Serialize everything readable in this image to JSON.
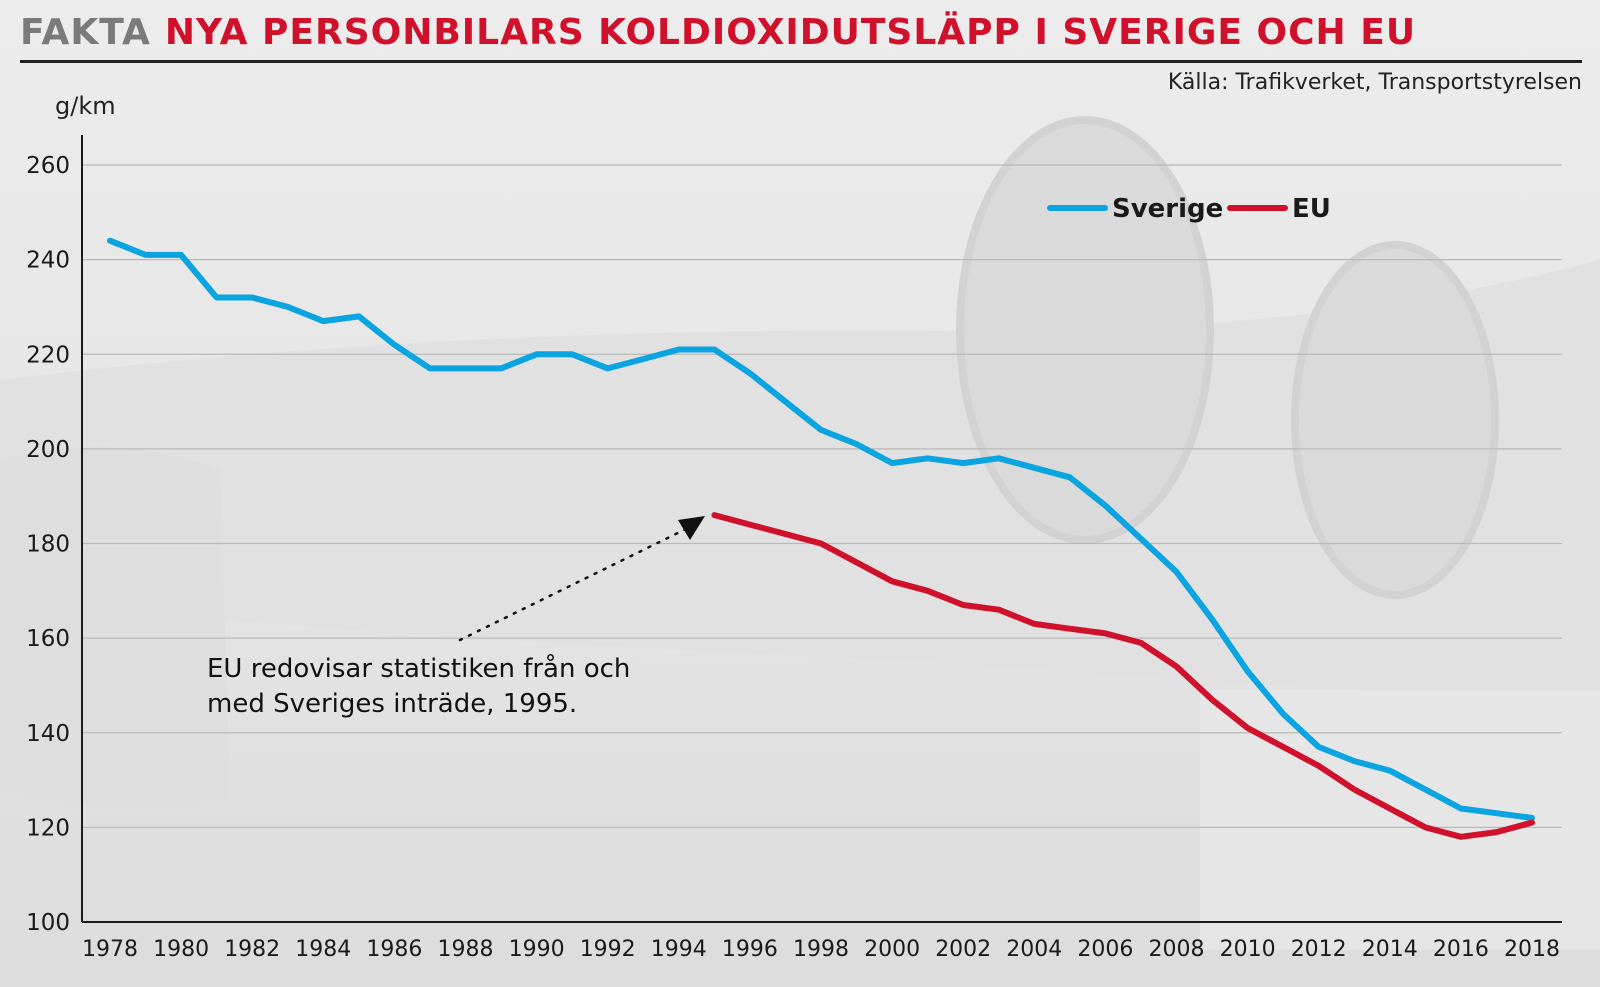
{
  "header": {
    "kicker": "FAKTA",
    "title": "NYA PERSONBILARS KOLDIOXIDUTSLÄPP I SVERIGE OCH EU"
  },
  "source": "Källa: Trafikverket, Transportstyrelsen",
  "annotation": {
    "line1": "EU redovisar statistiken från och",
    "line2": "med Sveriges inträde, 1995."
  },
  "colors": {
    "sverige": "#0aa4e0",
    "eu": "#d0112b",
    "accent": "#d0112b"
  },
  "chart_data": {
    "type": "line",
    "ylabel": "g/km",
    "ylim": [
      100,
      260
    ],
    "yticks": [
      100,
      120,
      140,
      160,
      180,
      200,
      220,
      240,
      260
    ],
    "xlim": [
      1978,
      2018
    ],
    "xticks": [
      1978,
      1980,
      1982,
      1984,
      1986,
      1988,
      1990,
      1992,
      1994,
      1996,
      1998,
      2000,
      2002,
      2004,
      2006,
      2008,
      2010,
      2012,
      2014,
      2016,
      2018
    ],
    "grid": true,
    "legend": "top-right",
    "series": [
      {
        "name": "Sverige",
        "x": [
          1978,
          1979,
          1980,
          1981,
          1982,
          1983,
          1984,
          1985,
          1986,
          1987,
          1988,
          1989,
          1990,
          1991,
          1992,
          1993,
          1994,
          1995,
          1996,
          1997,
          1998,
          1999,
          2000,
          2001,
          2002,
          2003,
          2004,
          2005,
          2006,
          2007,
          2008,
          2009,
          2010,
          2011,
          2012,
          2013,
          2014,
          2015,
          2016,
          2017,
          2018
        ],
        "y": [
          244,
          241,
          241,
          232,
          232,
          230,
          227,
          228,
          222,
          217,
          217,
          217,
          220,
          220,
          217,
          219,
          221,
          221,
          216,
          210,
          204,
          201,
          197,
          198,
          197,
          198,
          196,
          194,
          188,
          181,
          174,
          164,
          153,
          144,
          137,
          134,
          132,
          128,
          124,
          123,
          122
        ]
      },
      {
        "name": "EU",
        "x": [
          1995,
          1996,
          1997,
          1998,
          1999,
          2000,
          2001,
          2002,
          2003,
          2004,
          2005,
          2006,
          2007,
          2008,
          2009,
          2010,
          2011,
          2012,
          2013,
          2014,
          2015,
          2016,
          2017,
          2018
        ],
        "y": [
          186,
          184,
          182,
          180,
          176,
          172,
          170,
          167,
          166,
          163,
          162,
          161,
          159,
          154,
          147,
          141,
          137,
          133,
          128,
          124,
          120,
          118,
          119,
          121
        ]
      }
    ]
  }
}
